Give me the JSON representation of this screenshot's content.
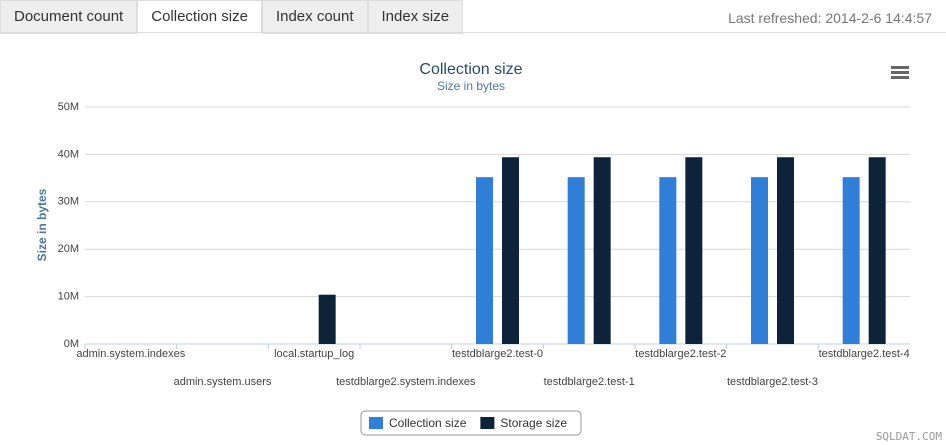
{
  "tabs": [
    "Document count",
    "Collection size",
    "Index count",
    "Index size"
  ],
  "active_tab": 1,
  "last_refreshed": "Last refreshed: 2014-2-6 14:4:57",
  "watermark": "SQLDAT.COM",
  "chart_data": {
    "type": "bar",
    "title": "Collection size",
    "subtitle": "Size in bytes",
    "y_label": "Size in bytes",
    "categories": [
      "admin.system.indexes",
      "admin.system.users",
      "local.startup_log",
      "testdblarge2.system.indexes",
      "testdblarge2.test-0",
      "testdblarge2.test-1",
      "testdblarge2.test-2",
      "testdblarge2.test-3",
      "testdblarge2.test-4"
    ],
    "series": [
      {
        "name": "Collection size",
        "color": "#2f7ed8",
        "values": [
          0,
          0,
          0,
          0,
          35.2,
          35.2,
          35.2,
          35.2,
          35.2
        ]
      },
      {
        "name": "Storage size",
        "color": "#0d233a",
        "values": [
          0,
          0,
          10.4,
          0,
          39.4,
          39.4,
          39.4,
          39.4,
          39.4
        ]
      }
    ],
    "ylim": [
      0,
      50
    ],
    "yticks": [
      {
        "value": 0,
        "label": "0M"
      },
      {
        "value": 10,
        "label": "10M"
      },
      {
        "value": 20,
        "label": "20M"
      },
      {
        "value": 30,
        "label": "30M"
      },
      {
        "value": 40,
        "label": "40M"
      },
      {
        "value": 50,
        "label": "50M"
      }
    ],
    "grid": true,
    "legend": "bottom"
  }
}
